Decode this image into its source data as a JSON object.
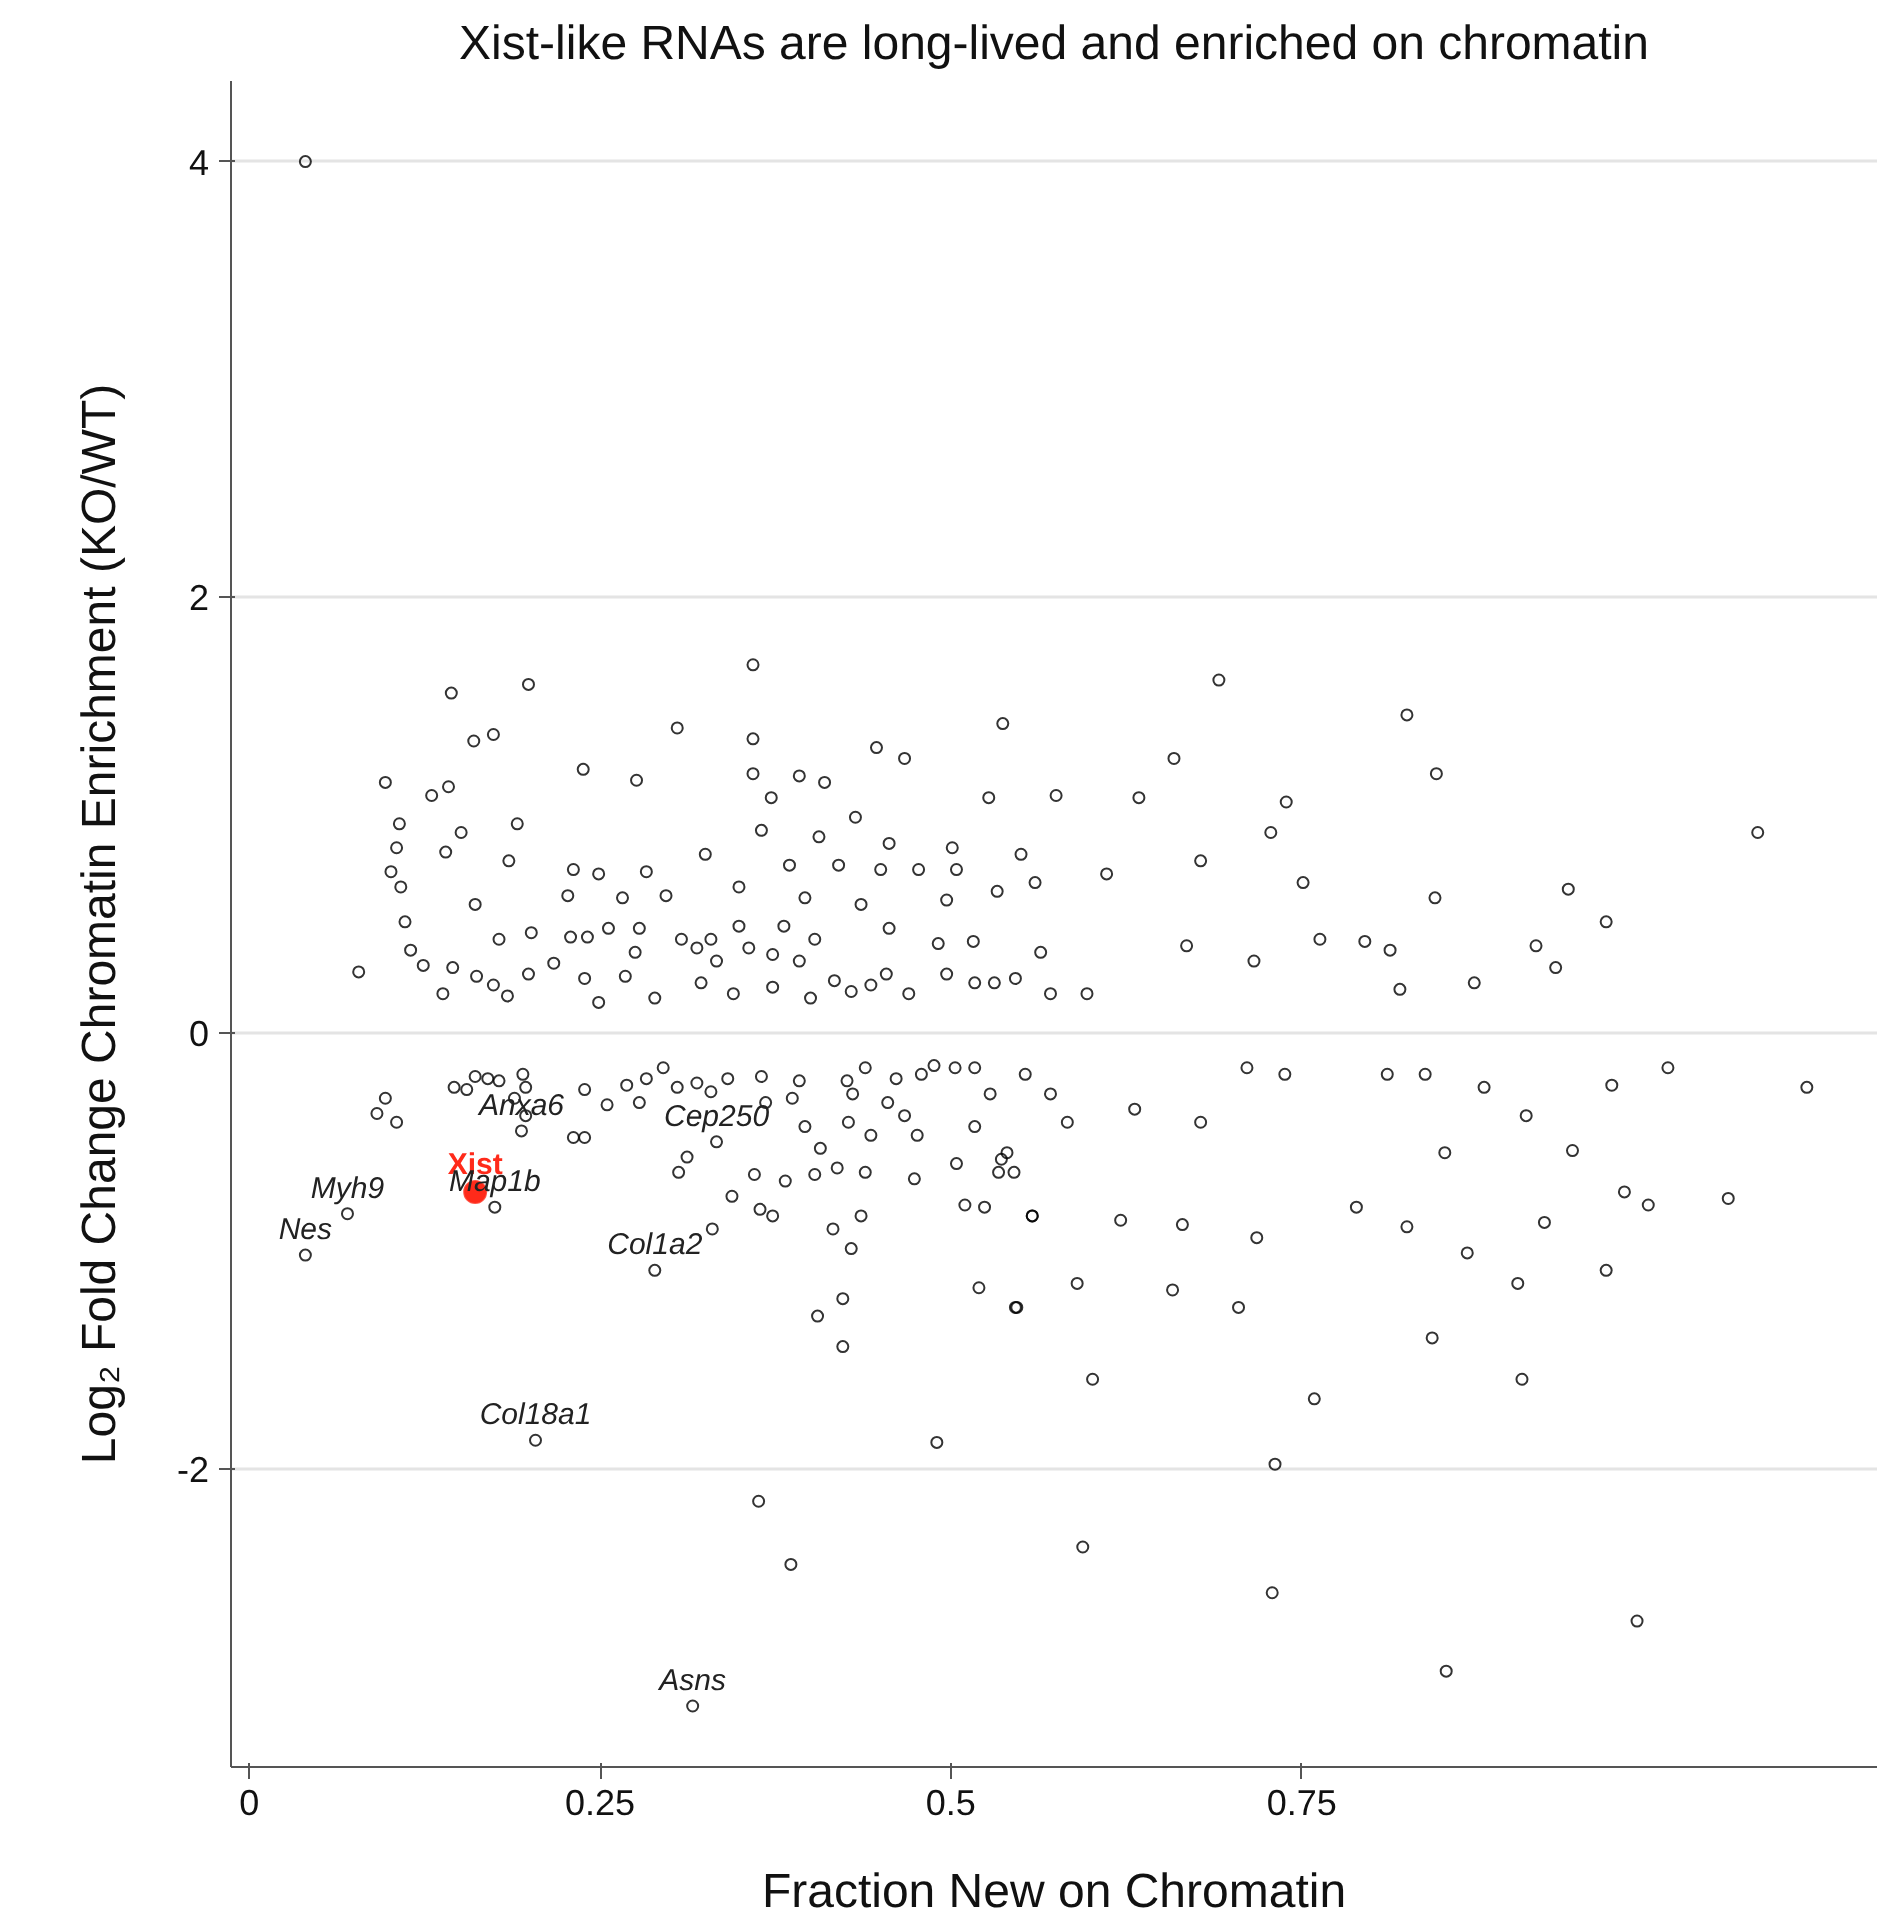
{
  "chart_data": {
    "type": "scatter",
    "title": "Xist-like RNAs are long-lived and enriched on chromatin",
    "xlabel": "Fraction New on Chromatin",
    "ylabel": "Log₂ Fold Change Chromatin Enrichment (KO/WT)",
    "xlim": [
      -0.013,
      1.16
    ],
    "ylim": [
      -3.37,
      4.37
    ],
    "xticks": [
      0,
      0.25,
      0.5,
      0.75
    ],
    "yticks": [
      -2,
      0,
      2,
      4
    ],
    "grid": "y",
    "marker": "circle",
    "series": [
      {
        "color": "#000000",
        "x": [
          0.04,
          0.144,
          0.199,
          0.359,
          0.537,
          0.305,
          0.16,
          0.174,
          0.359,
          0.447,
          0.467,
          0.097,
          0.238,
          0.276,
          0.359,
          0.392,
          0.41,
          0.527,
          0.13,
          0.142,
          0.372,
          0.432,
          0.107,
          0.105,
          0.151,
          0.14,
          0.191,
          0.365,
          0.406,
          0.456,
          0.501,
          0.55,
          0.101,
          0.185,
          0.325,
          0.45,
          0.477,
          0.108,
          0.231,
          0.283,
          0.385,
          0.42,
          0.249,
          0.504,
          0.111,
          0.161,
          0.227,
          0.266,
          0.297,
          0.349,
          0.396,
          0.436,
          0.497,
          0.533,
          0.56,
          0.115,
          0.145,
          0.078,
          0.124,
          0.138,
          0.162,
          0.174,
          0.184,
          0.199,
          0.178,
          0.201,
          0.217,
          0.229,
          0.241,
          0.239,
          0.249,
          0.256,
          0.278,
          0.275,
          0.268,
          0.289,
          0.308,
          0.319,
          0.329,
          0.333,
          0.322,
          0.345,
          0.349,
          0.356,
          0.373,
          0.381,
          0.373,
          0.4,
          0.392,
          0.403,
          0.417,
          0.429,
          0.443,
          0.454,
          0.47,
          0.456,
          0.491,
          0.497,
          0.517,
          0.516,
          0.531,
          0.546,
          0.571,
          0.691,
          0.825,
          0.846,
          0.659,
          1.075,
          0.94,
          0.967,
          0.917,
          0.931,
          0.873,
          0.845,
          0.739,
          0.728,
          0.751,
          0.575,
          0.634,
          0.82,
          0.813,
          0.597,
          0.564,
          0.611,
          0.668,
          0.716,
          0.763,
          0.795,
          0.678,
          0.097,
          0.091,
          0.105,
          0.146,
          0.161,
          0.17,
          0.178,
          0.189,
          0.195,
          0.197,
          0.155,
          0.197,
          0.239,
          0.255,
          0.231,
          0.239,
          0.269,
          0.283,
          0.295,
          0.278,
          0.305,
          0.319,
          0.329,
          0.341,
          0.312,
          0.306,
          0.344,
          0.33,
          0.365,
          0.368,
          0.36,
          0.364,
          0.373,
          0.382,
          0.392,
          0.387,
          0.403,
          0.396,
          0.407,
          0.416,
          0.405,
          0.423,
          0.423,
          0.429,
          0.436,
          0.419,
          0.427,
          0.426,
          0.439,
          0.43,
          0.439,
          0.461,
          0.479,
          0.488,
          0.503,
          0.474,
          0.455,
          0.467,
          0.443,
          0.476,
          0.504,
          0.51,
          0.524,
          0.52,
          0.547,
          0.49,
          0.517,
          0.534,
          0.545,
          0.558,
          0.54,
          0.528,
          0.553,
          0.517,
          0.571,
          1.11,
          1.011,
          0.971,
          1.054,
          0.997,
          0.967,
          0.98,
          0.943,
          0.923,
          0.907,
          0.868,
          0.904,
          0.843,
          0.759,
          0.731,
          0.705,
          0.658,
          0.601,
          0.546,
          0.59,
          0.825,
          0.789,
          0.91,
          0.88,
          0.838,
          0.811,
          0.852,
          0.718,
          0.665,
          0.621,
          0.558,
          0.711,
          0.738,
          0.678,
          0.631,
          0.583,
          0.536,
          0.363,
          0.386,
          0.594,
          0.729,
          0.853,
          0.989,
          0.04,
          0.07,
          0.175,
          0.194,
          0.333,
          0.289,
          0.204,
          0.316
        ],
        "values": [
          4.0,
          1.56,
          1.6,
          1.69,
          1.42,
          1.4,
          1.34,
          1.37,
          1.35,
          1.31,
          1.26,
          1.15,
          1.21,
          1.16,
          1.19,
          1.18,
          1.15,
          1.08,
          1.09,
          1.13,
          1.08,
          0.99,
          0.96,
          0.85,
          0.92,
          0.83,
          0.96,
          0.93,
          0.9,
          0.87,
          0.85,
          0.82,
          0.74,
          0.79,
          0.82,
          0.75,
          0.75,
          0.67,
          0.75,
          0.74,
          0.77,
          0.77,
          0.73,
          0.75,
          0.51,
          0.59,
          0.63,
          0.62,
          0.63,
          0.67,
          0.62,
          0.59,
          0.61,
          0.65,
          0.69,
          0.38,
          0.3,
          0.28,
          0.31,
          0.18,
          0.26,
          0.22,
          0.17,
          0.27,
          0.43,
          0.46,
          0.32,
          0.44,
          0.44,
          0.25,
          0.14,
          0.48,
          0.48,
          0.37,
          0.26,
          0.16,
          0.43,
          0.39,
          0.43,
          0.33,
          0.23,
          0.18,
          0.49,
          0.39,
          0.36,
          0.49,
          0.21,
          0.16,
          0.33,
          0.43,
          0.24,
          0.19,
          0.22,
          0.27,
          0.18,
          0.48,
          0.41,
          0.27,
          0.23,
          0.42,
          0.23,
          0.25,
          0.18,
          1.62,
          1.46,
          1.19,
          1.26,
          0.92,
          0.66,
          0.51,
          0.4,
          0.3,
          0.23,
          0.62,
          1.06,
          0.92,
          0.69,
          1.09,
          1.08,
          0.2,
          0.38,
          0.18,
          0.37,
          0.73,
          0.4,
          0.33,
          0.43,
          0.42,
          0.79,
          -0.3,
          -0.37,
          -0.41,
          -0.25,
          -0.2,
          -0.21,
          -0.22,
          -0.3,
          -0.19,
          -0.25,
          -0.26,
          -0.38,
          -0.26,
          -0.33,
          -0.48,
          -0.48,
          -0.24,
          -0.21,
          -0.16,
          -0.32,
          -0.25,
          -0.23,
          -0.27,
          -0.21,
          -0.57,
          -0.64,
          -0.75,
          -0.9,
          -0.2,
          -0.32,
          -0.65,
          -0.81,
          -0.84,
          -0.68,
          -0.22,
          -0.3,
          -0.65,
          -0.43,
          -0.53,
          -0.9,
          -1.3,
          -1.22,
          -1.44,
          -0.99,
          -0.84,
          -0.62,
          -0.41,
          -0.22,
          -0.16,
          -0.28,
          -0.64,
          -0.21,
          -0.19,
          -0.15,
          -0.16,
          -0.67,
          -0.32,
          -0.38,
          -0.47,
          -0.47,
          -0.6,
          -0.79,
          -0.8,
          -1.17,
          -1.26,
          -1.88,
          -0.43,
          -0.64,
          -0.64,
          -0.84,
          -0.55,
          -0.28,
          -0.19,
          -0.16,
          -0.28,
          -0.25,
          -0.16,
          -0.24,
          -0.76,
          -0.79,
          -1.09,
          -0.73,
          -0.54,
          -0.87,
          -1.59,
          -1.01,
          -1.15,
          -1.4,
          -1.68,
          -1.98,
          -1.26,
          -1.18,
          -1.59,
          -1.26,
          -1.15,
          -0.89,
          -0.8,
          -0.38,
          -0.25,
          -0.19,
          -0.19,
          -0.55,
          -0.94,
          -0.88,
          -0.86,
          -0.84,
          -0.16,
          -0.19,
          -0.41,
          -0.35,
          -0.41,
          -0.58,
          -2.15,
          -2.44,
          -2.36,
          -2.57,
          -2.93,
          -2.7,
          -1.02,
          -0.83,
          -0.8,
          -0.45,
          -0.5,
          -1.09,
          -1.87,
          -3.09
        ]
      },
      {
        "name": "Xist",
        "color": "#ff2a1a",
        "x": [
          0.161
        ],
        "values": [
          -0.73
        ]
      }
    ],
    "annotations": [
      {
        "text": "Nes",
        "x": 0.04,
        "y": -1.02
      },
      {
        "text": "Myh9",
        "x": 0.07,
        "y": -0.83
      },
      {
        "text": "Anxa6",
        "x": 0.194,
        "y": -0.45
      },
      {
        "text": "Map1b",
        "x": 0.175,
        "y": -0.8
      },
      {
        "text": "Cep250",
        "x": 0.333,
        "y": -0.5
      },
      {
        "text": "Col1a2",
        "x": 0.289,
        "y": -1.09
      },
      {
        "text": "Col18a1",
        "x": 0.204,
        "y": -1.87
      },
      {
        "text": "Asns",
        "x": 0.316,
        "y": -3.09
      }
    ]
  }
}
